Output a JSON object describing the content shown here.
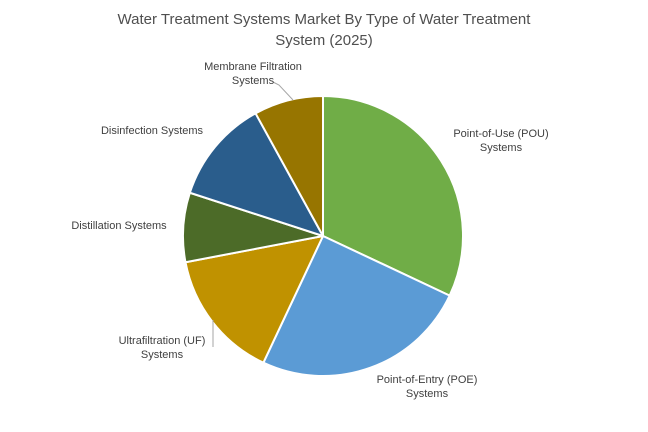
{
  "chart_data": {
    "type": "pie",
    "title": "Water Treatment Systems Market By Type of Water Treatment System (2025)",
    "start_angle_deg": 0,
    "direction": "clockwise",
    "legend_position": "none",
    "labels": "outside-category-labels",
    "slices": [
      {
        "label": "Point-of-Use (POU) Systems",
        "value": 32,
        "color": "#70AD47"
      },
      {
        "label": "Point-of-Entry (POE) Systems",
        "value": 25,
        "color": "#5B9BD5"
      },
      {
        "label": "Ultrafiltration (UF) Systems",
        "value": 15,
        "color": "#C09200"
      },
      {
        "label": "Distillation Systems",
        "value": 8,
        "color": "#4C6B28"
      },
      {
        "label": "Disinfection Systems",
        "value": 12,
        "color": "#2A5D8C"
      },
      {
        "label": "Membrane Filtration Systems",
        "value": 8,
        "color": "#977500"
      }
    ]
  },
  "colors": {
    "background": "#FFFFFF",
    "title_text": "#4F4F4F",
    "label_text": "#404040",
    "leader_line": "#A6A6A6",
    "slice_gap": "#FFFFFF"
  }
}
